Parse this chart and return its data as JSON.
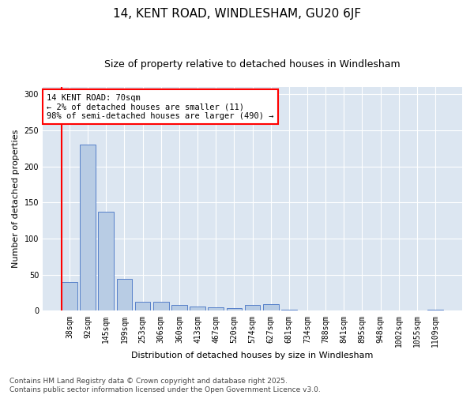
{
  "title": "14, KENT ROAD, WINDLESHAM, GU20 6JF",
  "subtitle": "Size of property relative to detached houses in Windlesham",
  "xlabel": "Distribution of detached houses by size in Windlesham",
  "ylabel": "Number of detached properties",
  "categories": [
    "38sqm",
    "92sqm",
    "145sqm",
    "199sqm",
    "253sqm",
    "306sqm",
    "360sqm",
    "413sqm",
    "467sqm",
    "520sqm",
    "574sqm",
    "627sqm",
    "681sqm",
    "734sqm",
    "788sqm",
    "841sqm",
    "895sqm",
    "948sqm",
    "1002sqm",
    "1055sqm",
    "1109sqm"
  ],
  "values": [
    40,
    230,
    137,
    44,
    13,
    13,
    8,
    6,
    5,
    4,
    8,
    9,
    2,
    1,
    1,
    0,
    0,
    0,
    0,
    0,
    2
  ],
  "bar_color": "#b8cce4",
  "bar_edge_color": "#4472c4",
  "highlight_line_color": "#ff0000",
  "highlight_bar_index": 0,
  "annotation_text": "14 KENT ROAD: 70sqm\n← 2% of detached houses are smaller (11)\n98% of semi-detached houses are larger (490) →",
  "annotation_box_color": "#ffffff",
  "annotation_box_edge": "#ff0000",
  "ylim": [
    0,
    310
  ],
  "yticks": [
    0,
    50,
    100,
    150,
    200,
    250,
    300
  ],
  "background_color": "#ffffff",
  "plot_bg_color": "#dce6f1",
  "grid_color": "#ffffff",
  "footer": "Contains HM Land Registry data © Crown copyright and database right 2025.\nContains public sector information licensed under the Open Government Licence v3.0.",
  "title_fontsize": 11,
  "subtitle_fontsize": 9,
  "axis_label_fontsize": 8,
  "tick_fontsize": 7,
  "annotation_fontsize": 7.5,
  "footer_fontsize": 6.5
}
